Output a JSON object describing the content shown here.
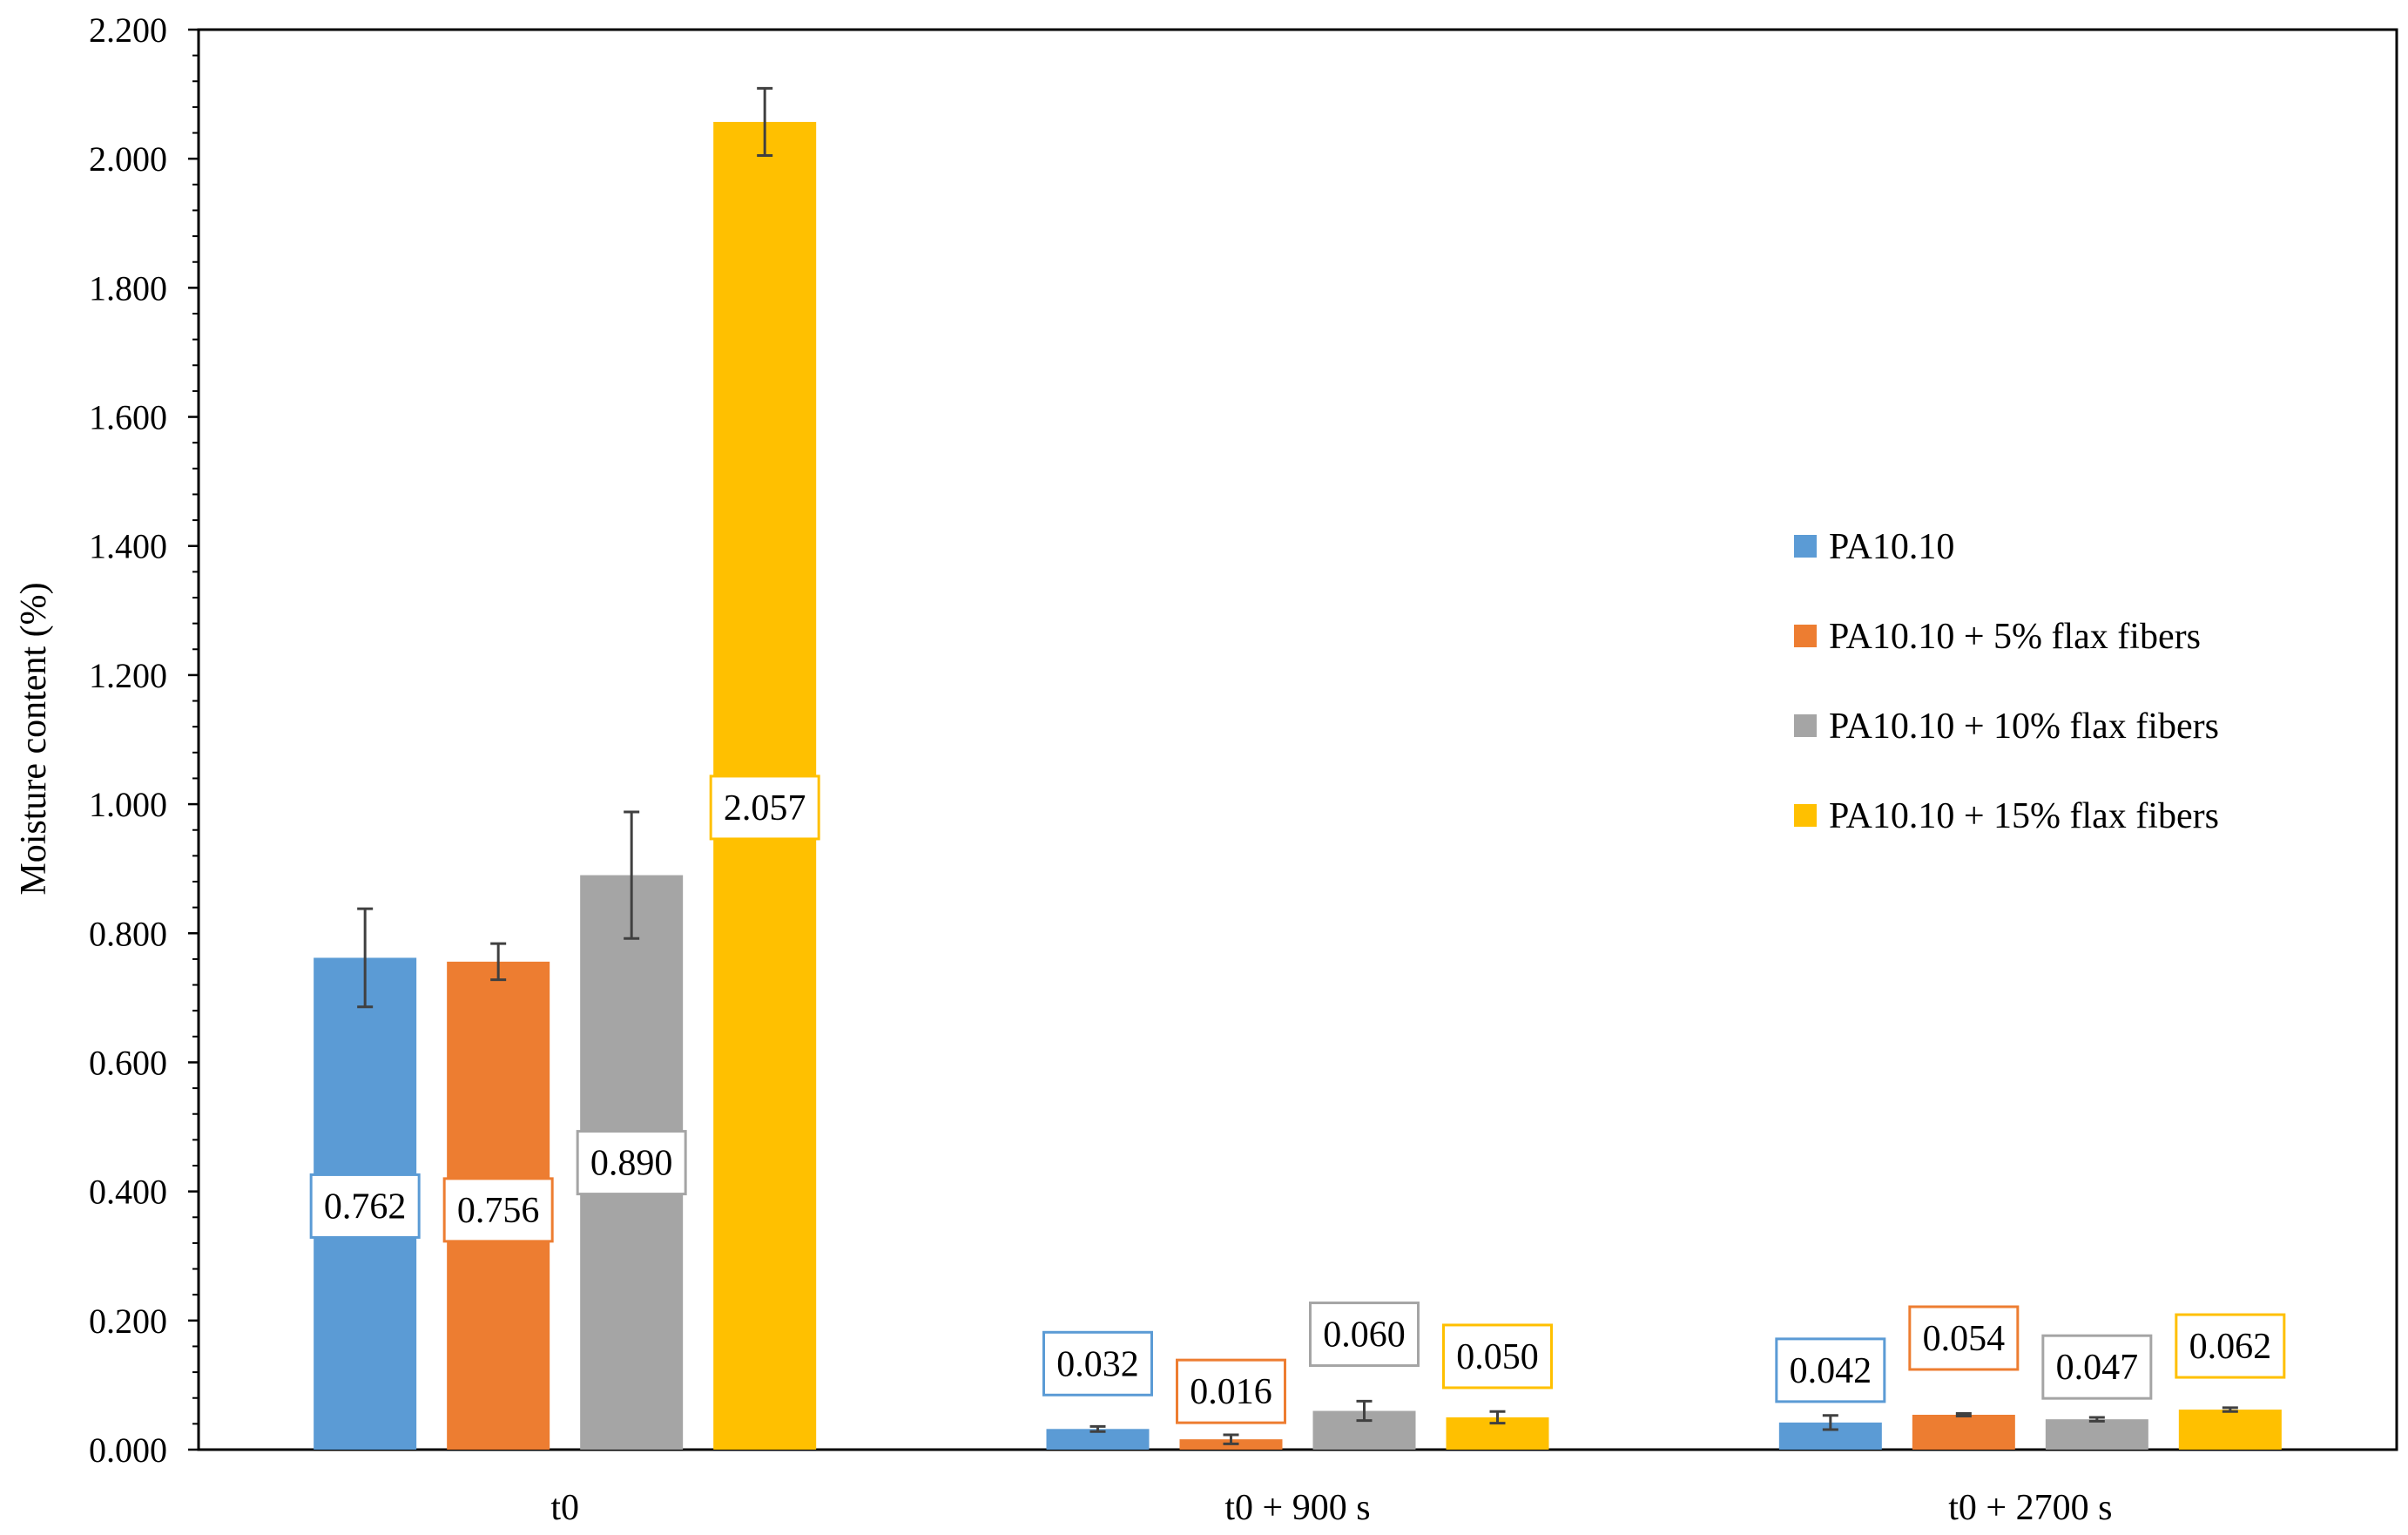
{
  "chart_data": {
    "type": "bar",
    "title": "",
    "xlabel": "",
    "ylabel": "Moisture content (%)",
    "ylim": [
      0,
      2.2
    ],
    "ytick_step": 0.2,
    "ytick_labels": [
      "0.000",
      "0.200",
      "0.400",
      "0.600",
      "0.800",
      "1.000",
      "1.200",
      "1.400",
      "1.600",
      "1.800",
      "2.000",
      "2.200"
    ],
    "minor_ticks_per_major": 4,
    "grid": false,
    "legend_position": "right",
    "categories": [
      "t0",
      "t0 + 900 s",
      "t0 + 2700 s"
    ],
    "series": [
      {
        "name": "PA10.10",
        "color": "#5B9BD5",
        "values": [
          0.762,
          0.032,
          0.042
        ],
        "errors": [
          0.076,
          0.004,
          0.011
        ],
        "labels": [
          "0.762",
          "0.032",
          "0.042"
        ]
      },
      {
        "name": "PA10.10 + 5% flax fibers",
        "color": "#ED7D31",
        "values": [
          0.756,
          0.016,
          0.054
        ],
        "errors": [
          0.028,
          0.007,
          0.002
        ],
        "labels": [
          "0.756",
          "0.016",
          "0.054"
        ]
      },
      {
        "name": "PA10.10 + 10% flax fibers",
        "color": "#A5A5A5",
        "values": [
          0.89,
          0.06,
          0.047
        ],
        "errors": [
          0.098,
          0.015,
          0.003
        ],
        "labels": [
          "0.890",
          "0.060",
          "0.047"
        ]
      },
      {
        "name": "PA10.10 + 15% flax fibers",
        "color": "#FFC000",
        "values": [
          2.057,
          0.05,
          0.062
        ],
        "errors": [
          0.052,
          0.009,
          0.003
        ],
        "labels": [
          "2.057",
          "0.050",
          "0.062"
        ]
      }
    ]
  }
}
